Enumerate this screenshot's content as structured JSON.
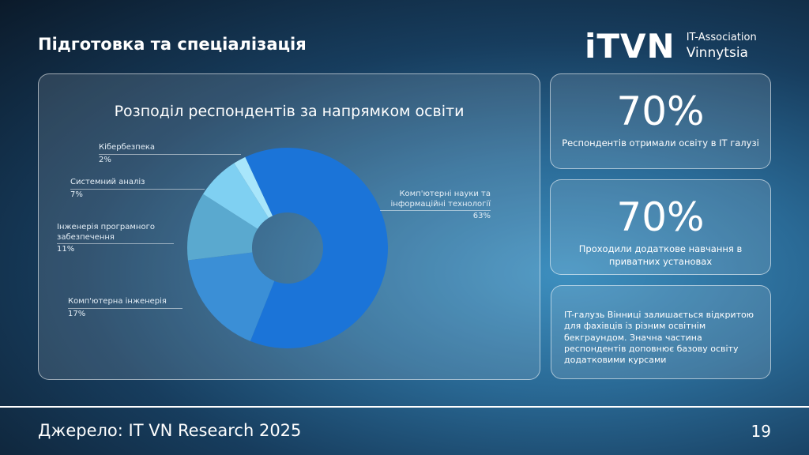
{
  "header": {
    "title": "Підготовка та спеціалізація",
    "logo": {
      "mark": "iTVN",
      "line1": "IT-Association",
      "line2": "Vinnytsia"
    }
  },
  "chart_data": {
    "type": "pie",
    "title": "Розподіл респондентів за напрямком освіти",
    "categories": [
      "Комп'ютерні науки та інформаційні технології",
      "Комп'ютерна інженерія",
      "Інженерія програмного забезпечення",
      "Системний аналіз",
      "Кібербезпека"
    ],
    "values": [
      63,
      17,
      11,
      7,
      2
    ],
    "labels": [
      "63%",
      "17%",
      "11%",
      "7%",
      "2%"
    ],
    "colors": [
      "#1b74d8",
      "#3b8fd6",
      "#5aa9cf",
      "#7fd0f2",
      "#a8e6fb"
    ],
    "donut": true
  },
  "stats": [
    {
      "value": "70%",
      "caption": "Респондентів отримали освіту в IT галузі"
    },
    {
      "value": "70%",
      "caption": "Проходили додаткове навчання в приватних установах"
    }
  ],
  "note": "IT-галузь Вінниці залишається відкритою для фахівців із різним освітнім бекграундом. Значна частина респондентів доповнює базову освіту додатковими курсами",
  "footer": {
    "source": "Джерело: IT VN Research 2025",
    "page": "19"
  }
}
